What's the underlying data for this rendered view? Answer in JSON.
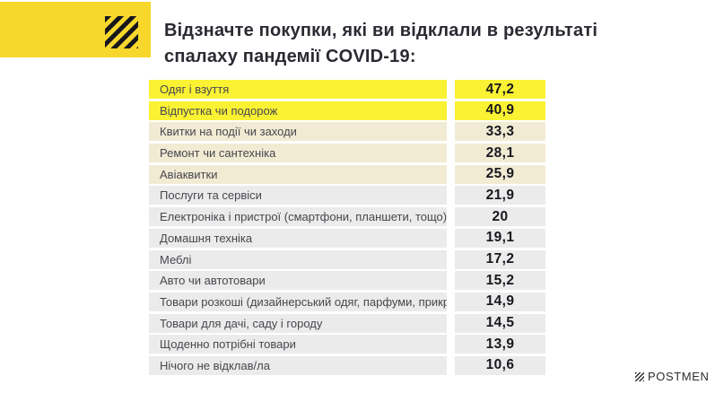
{
  "header": {
    "title_line1": "Відзначте покупки, які ви відклали в результаті",
    "title_line2": "спалаху пандемії COVID-19:"
  },
  "rows": [
    {
      "label": "Одяг і взуття",
      "value": "47,2",
      "tier": "yellow"
    },
    {
      "label": "Відпустка  чи подорож",
      "value": "40,9",
      "tier": "yellow"
    },
    {
      "label": "Квитки на події чи заходи",
      "value": "33,3",
      "tier": "beige"
    },
    {
      "label": "Ремонт  чи сантехніка",
      "value": "28,1",
      "tier": "beige"
    },
    {
      "label": "Авіаквитки",
      "value": "25,9",
      "tier": "beige"
    },
    {
      "label": "Послуги  та сервіси",
      "value": "21,9",
      "tier": "gray"
    },
    {
      "label": "Електроніка  і пристрої (смартфони, планшети, тощо)",
      "value": "20",
      "tier": "gray"
    },
    {
      "label": "Домашня техніка",
      "value": "19,1",
      "tier": "gray"
    },
    {
      "label": "Меблі",
      "value": "17,2",
      "tier": "gray"
    },
    {
      "label": "Авто чи автотовари",
      "value": "15,2",
      "tier": "gray"
    },
    {
      "label": "Товари  розкоші (дизайнерський одяг, парфуми, прикраси)",
      "value": "14,9",
      "tier": "gray"
    },
    {
      "label": "Товари для дачі, саду і городу",
      "value": "14,5",
      "tier": "gray"
    },
    {
      "label": "Щоденно  потрібні товари",
      "value": "13,9",
      "tier": "gray"
    },
    {
      "label": "Нічого  не відклав/ла",
      "value": "10,6",
      "tier": "gray"
    }
  ],
  "footer": {
    "brand": "POSTMEN"
  },
  "icons": {
    "header_icon": "diagonal-stripes-icon",
    "brand_icon": "diagonal-stripes-icon"
  },
  "colors": {
    "header_yellow": "#F7D72B",
    "row_yellow": "#FAF233",
    "row_beige": "#F2EBD4",
    "row_gray": "#EBEBEB",
    "ink": "#17171D",
    "title_ink": "#2A2A32",
    "label_ink": "#47474E",
    "brand_ink": "#2D2D30"
  },
  "chart_data": {
    "type": "table",
    "title": "Відзначте покупки, які ви відклали в результаті спалаху пандемії COVID-19:",
    "categories": [
      "Одяг і взуття",
      "Відпустка чи подорож",
      "Квитки на події чи заходи",
      "Ремонт чи сантехніка",
      "Авіаквитки",
      "Послуги та сервіси",
      "Електроніка і пристрої (смартфони, планшети, тощо)",
      "Домашня техніка",
      "Меблі",
      "Авто чи автотовари",
      "Товари розкоші (дизайнерський одяг, парфуми, прикраси)",
      "Товари для дачі, саду і городу",
      "Щоденно потрібні товари",
      "Нічого не відклав/ла"
    ],
    "values": [
      47.2,
      40.9,
      33.3,
      28.1,
      25.9,
      21.9,
      20,
      19.1,
      17.2,
      15.2,
      14.9,
      14.5,
      13.9,
      10.6
    ],
    "value_format": "comma-decimal",
    "sorted": "descending",
    "row_highlight_groups": {
      "yellow": [
        0,
        1
      ],
      "beige": [
        2,
        3,
        4
      ],
      "gray": [
        5,
        6,
        7,
        8,
        9,
        10,
        11,
        12,
        13
      ]
    },
    "legend": "none",
    "grid": false
  }
}
